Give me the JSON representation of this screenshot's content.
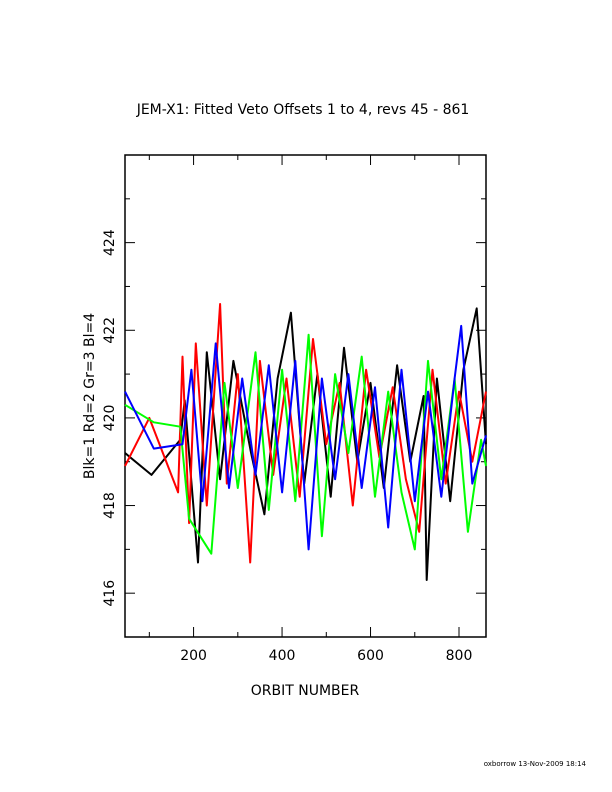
{
  "chart_data": {
    "type": "line",
    "title": "JEM-X1: Fitted Veto Offsets 1 to 4, revs 45 - 861",
    "xlabel": "ORBIT NUMBER",
    "ylabel": "Blk=1 Rd=2 Gr=3 Bl=4",
    "xlim": [
      45,
      861
    ],
    "ylim": [
      415,
      426
    ],
    "xticks": [
      200,
      400,
      600,
      800
    ],
    "yticks": [
      416,
      418,
      420,
      422,
      424
    ],
    "grid": false,
    "series": [
      {
        "name": "1",
        "color": "#000000",
        "x": [
          45,
          105,
          170,
          180,
          210,
          230,
          260,
          290,
          330,
          360,
          390,
          420,
          450,
          480,
          510,
          540,
          570,
          600,
          630,
          660,
          690,
          720,
          727,
          750,
          780,
          810,
          840,
          861
        ],
        "y": [
          419.2,
          418.7,
          419.5,
          420.4,
          416.7,
          421.5,
          418.6,
          421.3,
          419.2,
          417.8,
          420.9,
          422.4,
          418.5,
          421.0,
          418.2,
          421.6,
          419.0,
          420.8,
          418.4,
          421.2,
          419.0,
          420.5,
          416.3,
          420.9,
          418.1,
          421.1,
          422.5,
          419.4
        ]
      },
      {
        "name": "2",
        "color": "#ff0000",
        "x": [
          45,
          100,
          165,
          175,
          190,
          205,
          230,
          260,
          275,
          300,
          328,
          350,
          380,
          410,
          440,
          470,
          500,
          530,
          560,
          590,
          620,
          650,
          680,
          710,
          740,
          770,
          800,
          830,
          861
        ],
        "y": [
          418.9,
          420.0,
          418.3,
          421.4,
          417.6,
          421.7,
          418.0,
          422.6,
          418.5,
          421.0,
          416.7,
          421.3,
          418.7,
          420.9,
          418.2,
          421.8,
          419.4,
          420.8,
          418.0,
          421.1,
          419.1,
          420.7,
          418.6,
          417.4,
          421.1,
          418.5,
          420.6,
          419.0,
          420.6
        ]
      },
      {
        "name": "3",
        "color": "#00ff00",
        "x": [
          45,
          110,
          170,
          190,
          240,
          270,
          300,
          340,
          370,
          400,
          430,
          460,
          490,
          520,
          550,
          580,
          610,
          640,
          670,
          700,
          730,
          760,
          790,
          820,
          850,
          861
        ],
        "y": [
          420.3,
          419.9,
          419.8,
          417.7,
          416.9,
          420.8,
          418.4,
          421.5,
          417.9,
          421.1,
          418.1,
          421.9,
          417.3,
          421.0,
          419.2,
          421.4,
          418.2,
          420.6,
          418.3,
          417.0,
          421.3,
          418.6,
          420.9,
          417.4,
          419.5,
          418.9
        ]
      },
      {
        "name": "4",
        "color": "#0000ff",
        "x": [
          45,
          110,
          175,
          195,
          220,
          250,
          280,
          310,
          340,
          370,
          400,
          430,
          460,
          490,
          520,
          550,
          580,
          610,
          640,
          670,
          700,
          730,
          760,
          790,
          805,
          830,
          861
        ],
        "y": [
          420.6,
          419.3,
          419.4,
          421.1,
          418.1,
          421.7,
          418.4,
          420.9,
          418.7,
          421.2,
          418.3,
          421.3,
          417.0,
          420.9,
          418.6,
          421.0,
          418.4,
          420.7,
          417.5,
          421.1,
          418.1,
          420.6,
          418.2,
          420.9,
          422.1,
          418.5,
          419.6
        ]
      }
    ]
  },
  "footer": "oxborrow 13-Nov-2009 18:14"
}
